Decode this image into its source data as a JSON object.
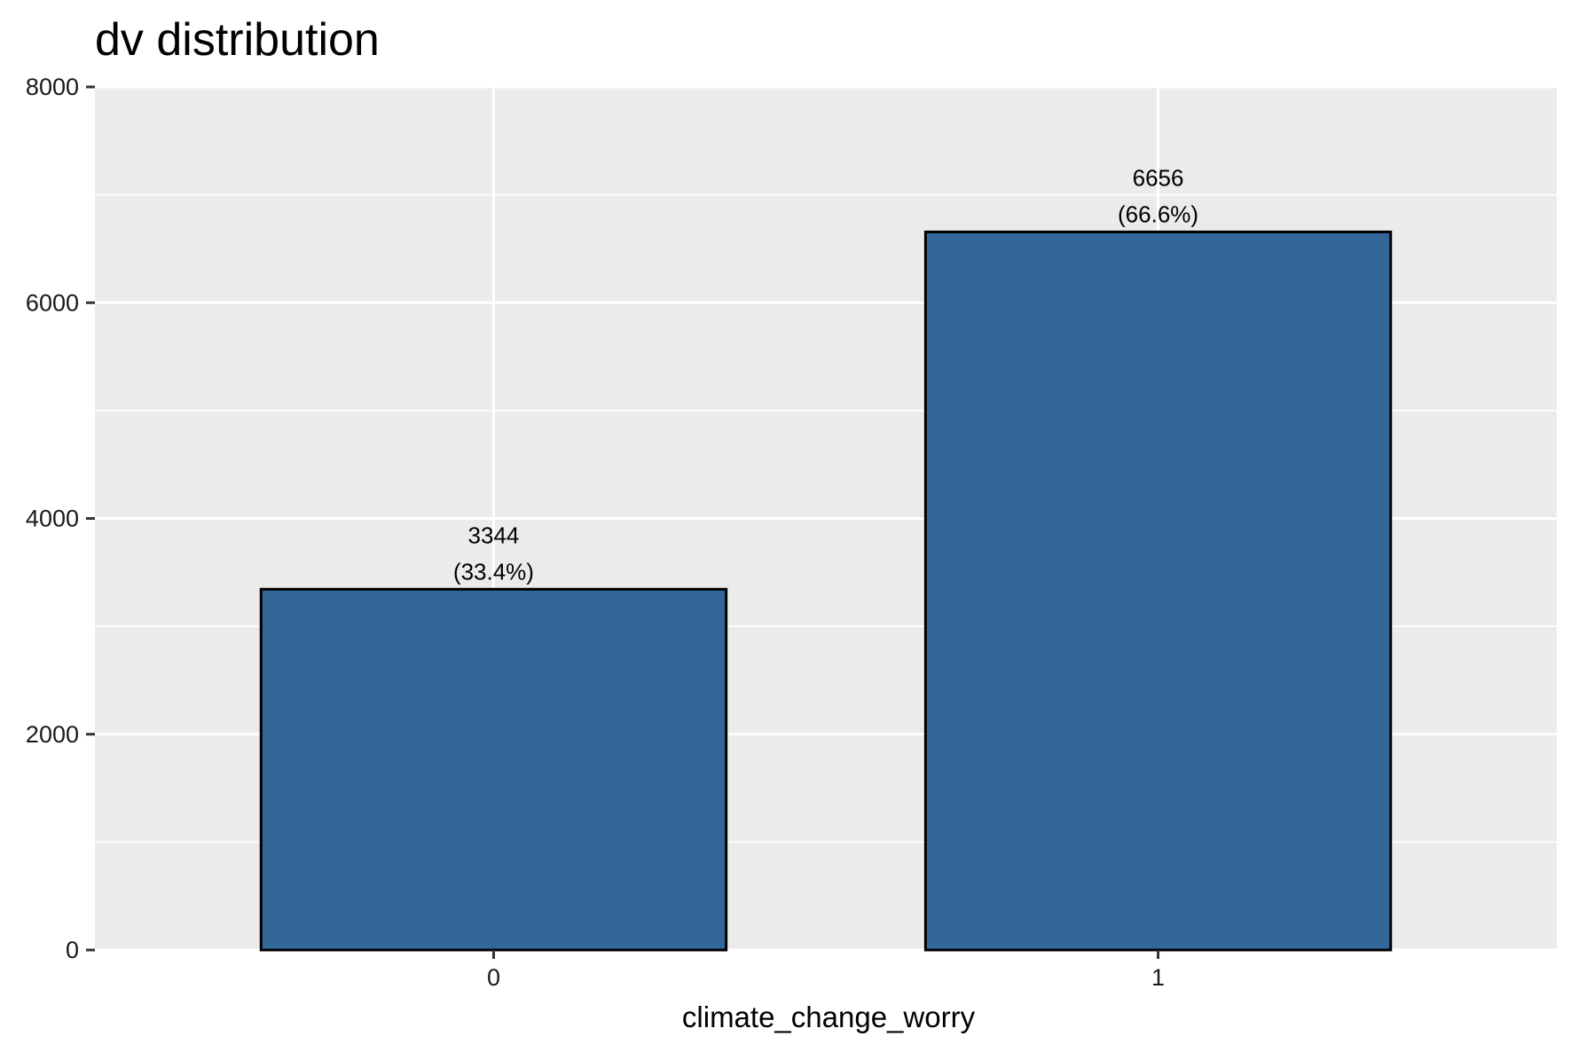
{
  "chart_data": {
    "type": "bar",
    "title": "dv distribution",
    "xlabel": "climate_change_worry",
    "ylabel": "",
    "categories": [
      "0",
      "1"
    ],
    "values": [
      3344,
      6656
    ],
    "value_labels": [
      "3344",
      "6656"
    ],
    "percent_labels": [
      "(33.4%)",
      "(66.6%)"
    ],
    "ylim": [
      0,
      8000
    ],
    "y_major_ticks": [
      0,
      2000,
      4000,
      6000,
      8000
    ],
    "y_tick_labels": [
      "0",
      "2000",
      "4000",
      "6000",
      "8000"
    ],
    "y_minor_gridlines": [
      1000,
      3000,
      5000,
      7000
    ],
    "grid": true,
    "legend": "none",
    "colors": {
      "bar_fill": "#336699",
      "bar_outline": "#000000",
      "panel_background": "#EBEBEB",
      "gridline": "#FFFFFF"
    }
  }
}
